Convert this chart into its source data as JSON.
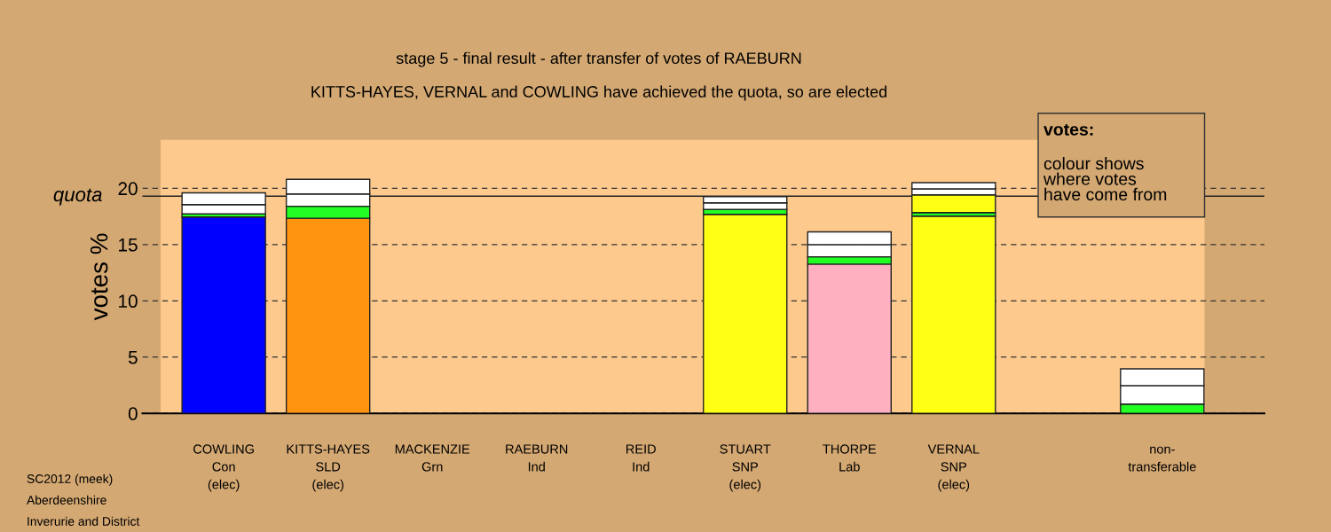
{
  "chart_data": {
    "type": "bar",
    "stacked": true,
    "title": "stage 5 - final result - after transfer of votes of RAEBURN",
    "subtitle": "KITTS-HAYES, VERNAL and COWLING have achieved the quota, so are elected",
    "ylabel": "votes %",
    "categories": [
      "COWLING\nCon\n(elec)",
      "KITTS-HAYES\nSLD\n(elec)",
      "MACKENZIE\nGrn",
      "RAEBURN\nInd",
      "REID\nInd",
      "STUART\nSNP\n(elec)",
      "THORPE\nLab",
      "VERNAL\nSNP\n(elec)",
      null,
      "non-\ntransferable"
    ],
    "series": [
      {
        "colors": [
          "#0000ff",
          "#ff9410",
          null,
          null,
          null,
          "#ffff14",
          "#ffb0c0",
          "#ffff14",
          null,
          null
        ],
        "values": [
          17.45,
          17.34,
          0,
          0,
          0,
          17.68,
          13.26,
          17.53,
          0,
          0
        ]
      },
      {
        "color": "#22ff22",
        "values": [
          0.28,
          1.06,
          0,
          0,
          0,
          0.45,
          0.65,
          0.31,
          0,
          0.82
        ]
      },
      {
        "color": "#ffff14",
        "values": [
          0,
          0,
          0,
          0,
          0,
          0,
          0,
          1.58,
          0,
          0
        ]
      },
      {
        "color": "#ffffff",
        "values": [
          0.82,
          1.1,
          0,
          0,
          0,
          0.58,
          1.09,
          0.53,
          0,
          1.65
        ]
      },
      {
        "color": "#ffffff",
        "values": [
          1.05,
          1.3,
          0,
          0,
          0,
          0.55,
          1.13,
          0.55,
          0,
          1.48
        ]
      }
    ],
    "ylim": [
      0,
      24.3
    ],
    "yticks": [
      0,
      5,
      10,
      15,
      20
    ],
    "grid": "y",
    "ref_lines": [
      {
        "axis": "y",
        "value": 19.3,
        "label": "quota"
      }
    ],
    "annotations": [
      "votes:",
      "colour shows\nwhere votes\nhave come from",
      "SC2012 (meek)",
      "Aberdeenshire",
      "Inverurie and District"
    ]
  }
}
